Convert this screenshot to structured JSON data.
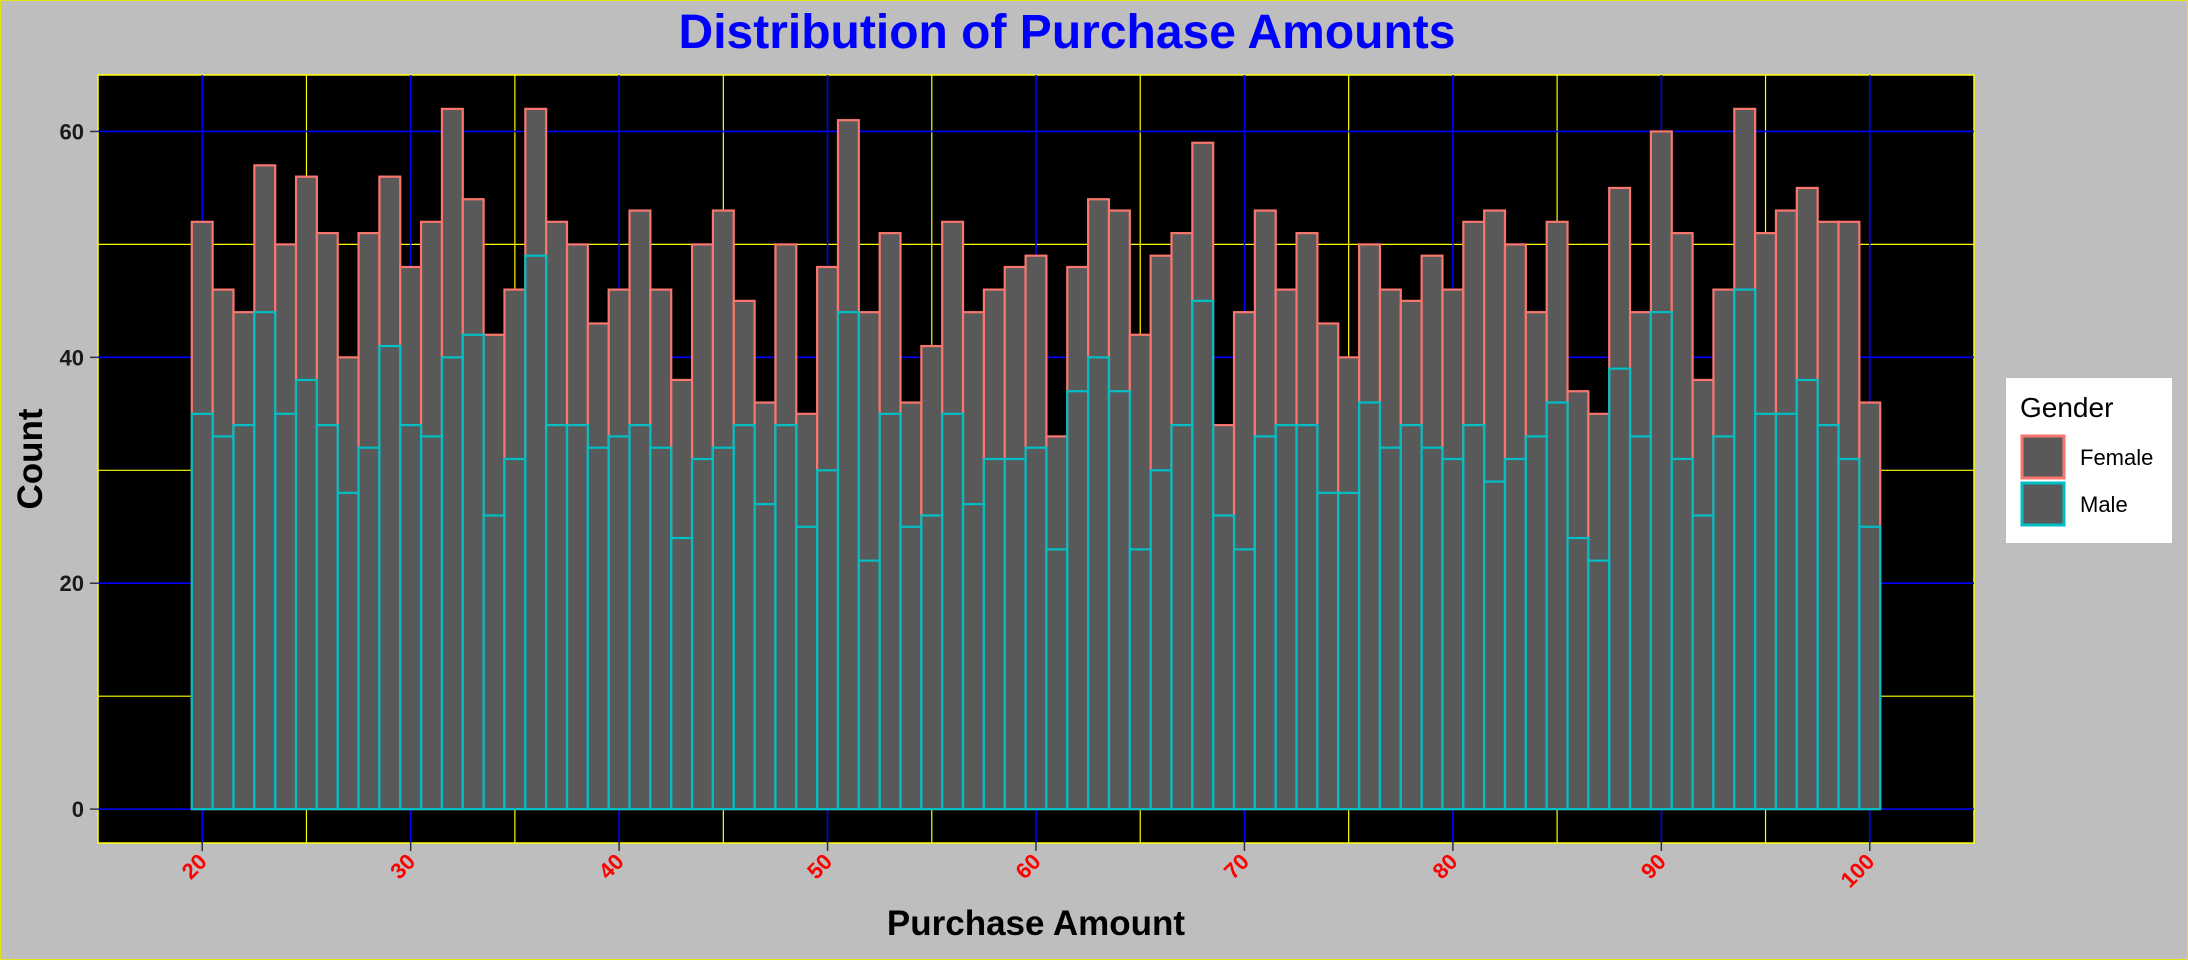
{
  "chart_data": {
    "type": "bar",
    "subtype": "overlapping histogram",
    "title": "Distribution of Purchase Amounts",
    "xlabel": "Purchase Amount",
    "ylabel": "Count",
    "xlim": [
      15,
      105
    ],
    "ylim": [
      -3,
      65
    ],
    "xticks": [
      20,
      30,
      40,
      50,
      60,
      70,
      80,
      90,
      100
    ],
    "yticks": [
      0,
      20,
      40,
      60
    ],
    "grid": true,
    "legend": {
      "title": "Gender",
      "position": "right"
    },
    "bin_width": 1,
    "x": [
      20,
      21,
      22,
      23,
      24,
      25,
      26,
      27,
      28,
      29,
      30,
      31,
      32,
      33,
      34,
      35,
      36,
      37,
      38,
      39,
      40,
      41,
      42,
      43,
      44,
      45,
      46,
      47,
      48,
      49,
      50,
      51,
      52,
      53,
      54,
      55,
      56,
      57,
      58,
      59,
      60,
      61,
      62,
      63,
      64,
      65,
      66,
      67,
      68,
      69,
      70,
      71,
      72,
      73,
      74,
      75,
      76,
      77,
      78,
      79,
      80,
      81,
      82,
      83,
      84,
      85,
      86,
      87,
      88,
      89,
      90,
      91,
      92,
      93,
      94,
      95,
      96,
      97,
      98,
      99,
      100
    ],
    "series": [
      {
        "name": "Female",
        "color": "#f8766d",
        "values": [
          52,
          46,
          44,
          57,
          50,
          56,
          51,
          40,
          51,
          56,
          48,
          52,
          62,
          54,
          42,
          46,
          62,
          52,
          50,
          43,
          46,
          53,
          46,
          38,
          50,
          53,
          45,
          36,
          50,
          35,
          48,
          61,
          44,
          51,
          36,
          41,
          52,
          44,
          46,
          48,
          49,
          33,
          48,
          54,
          53,
          42,
          49,
          51,
          59,
          34,
          44,
          53,
          46,
          51,
          43,
          40,
          50,
          46,
          45,
          49,
          46,
          52,
          53,
          50,
          44,
          52,
          37,
          35,
          55,
          44,
          60,
          51,
          38,
          46,
          62,
          51,
          53,
          55,
          52,
          52,
          36
        ]
      },
      {
        "name": "Male",
        "color": "#00bfc4",
        "values": [
          35,
          33,
          34,
          44,
          35,
          38,
          34,
          28,
          32,
          41,
          34,
          33,
          40,
          42,
          26,
          31,
          49,
          34,
          34,
          32,
          33,
          34,
          32,
          24,
          31,
          32,
          34,
          27,
          34,
          25,
          30,
          44,
          22,
          35,
          25,
          26,
          35,
          27,
          31,
          31,
          32,
          23,
          37,
          40,
          37,
          23,
          30,
          34,
          45,
          26,
          23,
          33,
          34,
          34,
          28,
          28,
          36,
          32,
          34,
          32,
          31,
          34,
          29,
          31,
          33,
          36,
          24,
          22,
          39,
          33,
          44,
          31,
          26,
          33,
          46,
          35,
          35,
          38,
          34,
          31,
          25
        ]
      }
    ]
  },
  "colors": {
    "background": "#bebebe",
    "panel": "#000000",
    "bar_fill": "#595959",
    "major_grid": "#0000ff",
    "minor_grid": "#ffff00",
    "title": "#0000ff",
    "x_tick_labels": "#ff0000"
  }
}
